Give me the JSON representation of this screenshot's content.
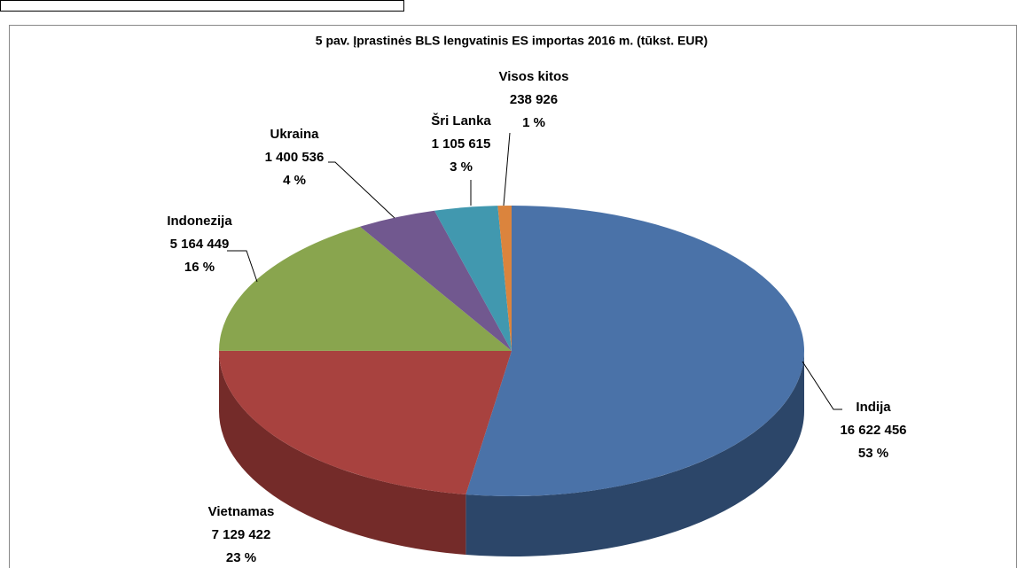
{
  "chart_data": {
    "type": "pie3d",
    "title": "5 pav. Įprastinės BLS lengvatinis ES importas 2016 m. (tūkst. EUR)",
    "categories": [
      "Indija",
      "Vietnamas",
      "Indonezija",
      "Ukraina",
      "Šri Lanka",
      "Visos kitos"
    ],
    "values": [
      16622456,
      7129422,
      5164449,
      1400536,
      1105615,
      238926
    ],
    "value_labels": [
      "16 622 456",
      "7 129 422",
      "5 164 449",
      "1 400 536",
      "1 105 615",
      "238 926"
    ],
    "percents": [
      53,
      23,
      16,
      4,
      3,
      1
    ],
    "percent_labels": [
      "53 %",
      "23 %",
      "16 %",
      "4 %",
      "3 %",
      "1 %"
    ],
    "colors": [
      "#4a72a8",
      "#a8423f",
      "#89a54e",
      "#71588f",
      "#4198af",
      "#db843d"
    ],
    "side_colors": [
      "#2c4669",
      "#742b29",
      "#5e7435",
      "#4d3c63",
      "#2b6a7c",
      "#a35f27"
    ]
  }
}
